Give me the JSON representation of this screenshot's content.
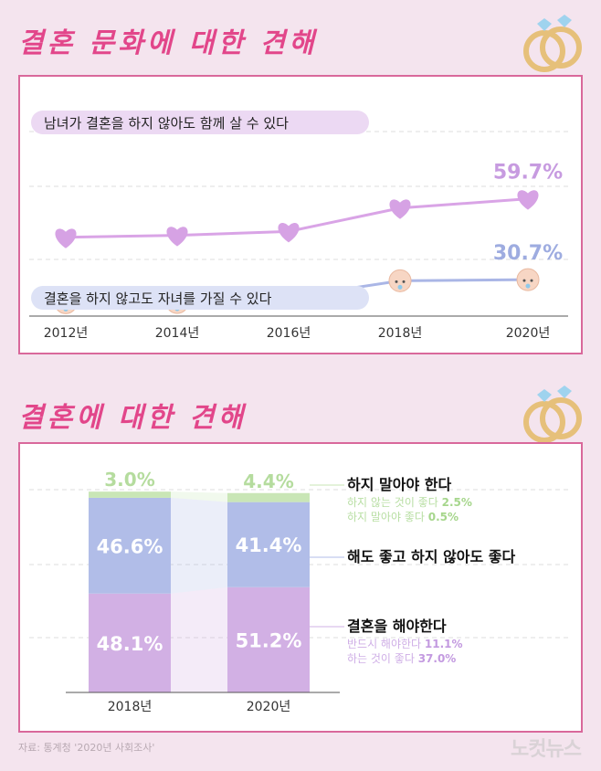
{
  "chart_data": [
    {
      "type": "line",
      "title": "결혼 문화에 대한 견해",
      "categories": [
        "2012년",
        "2014년",
        "2016년",
        "2018년",
        "2020년"
      ],
      "series": [
        {
          "name": "남녀가 결혼을 하지 않아도 함께 살 수 있다",
          "values": [
            45.9,
            46.6,
            48.0,
            56.4,
            59.7
          ],
          "data_labels": {
            "2020년": "59.7%"
          },
          "marker": "heart",
          "color": "#d9a4e6"
        },
        {
          "name": "결혼을 하지 않고도 자녀를 가질 수 있다",
          "values": [
            22.4,
            22.5,
            24.2,
            30.3,
            30.7
          ],
          "data_labels": {
            "2020년": "30.7%"
          },
          "marker": "baby-face",
          "color": "#aab6e6"
        }
      ],
      "grid": "dashed horizontal"
    },
    {
      "type": "bar",
      "stacked": true,
      "title": "결혼에 대한 견해",
      "categories": [
        "2018년",
        "2020년"
      ],
      "ylim": [
        0,
        100
      ],
      "series": [
        {
          "name": "결혼을 해야한다",
          "values": [
            48.1,
            51.2
          ],
          "labels": [
            "48.1%",
            "51.2%"
          ],
          "color": "#d2b0e4",
          "details": [
            {
              "label": "반드시 해야한다",
              "value": "11.1%"
            },
            {
              "label": "하는 것이 좋다",
              "value": "37.0%"
            }
          ]
        },
        {
          "name": "해도 좋고 하지 않아도 좋다",
          "values": [
            46.6,
            41.4
          ],
          "labels": [
            "46.6%",
            "41.4%"
          ],
          "color": "#b1bde8",
          "details": []
        },
        {
          "name": "하지 말아야 한다",
          "values": [
            3.0,
            4.4
          ],
          "labels": [
            "3.0%",
            "4.4%"
          ],
          "color": "#c9e6b6",
          "details": [
            {
              "label": "하지 않는 것이 좋다",
              "value": "2.5%"
            },
            {
              "label": "하지 말아야 좋다",
              "value": "0.5%"
            }
          ]
        }
      ]
    }
  ],
  "source": "자료: 통계청 '2020년 사회조사'",
  "logo": "노컷뉴스"
}
